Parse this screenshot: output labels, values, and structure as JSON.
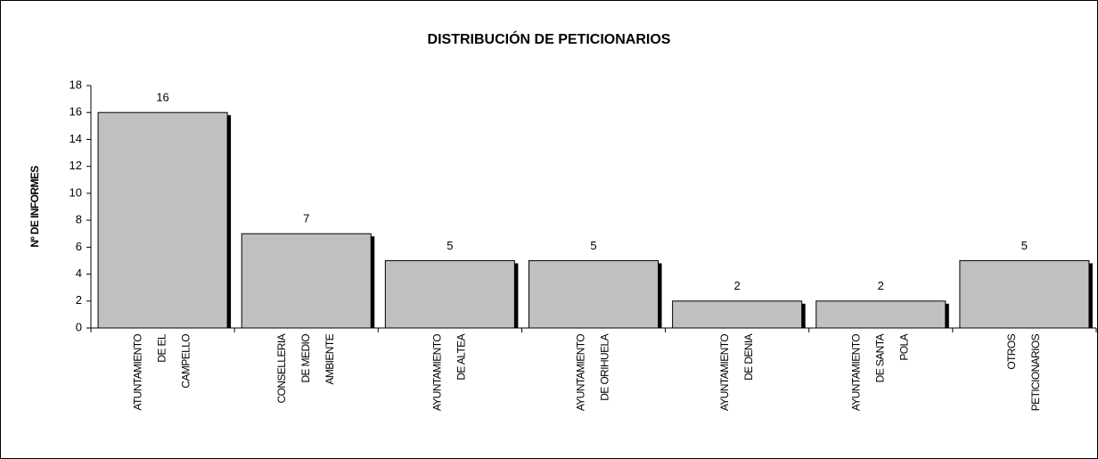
{
  "chart_data": {
    "type": "bar",
    "title": "DISTRIBUCIÓN DE PETICIONARIOS",
    "y_label": "Nº DE INFORMES",
    "categories": [
      [
        "ATUNTAMIENTO",
        "DE EL",
        "CAMPELLO"
      ],
      [
        "CONSELLERIA",
        "DE MEDIO",
        "AMBIENTE"
      ],
      [
        "AYUNTAMIENTO",
        "DE ALTEA"
      ],
      [
        "AYUNTAMIENTO",
        "DE ORIHUELA"
      ],
      [
        "AYUNTAMIENTO",
        "DE DENIA"
      ],
      [
        "AYUNTAMIENTO",
        "DE SANTA",
        "POLA"
      ],
      [
        "OTROS",
        "PETICIONARIOS"
      ]
    ],
    "values": [
      16,
      7,
      5,
      5,
      2,
      2,
      5
    ],
    "color": "#c0c0c0",
    "ylim": [
      0,
      18
    ],
    "yticks": [
      0,
      2,
      4,
      6,
      8,
      10,
      12,
      14,
      16,
      18
    ],
    "grid": false
  }
}
